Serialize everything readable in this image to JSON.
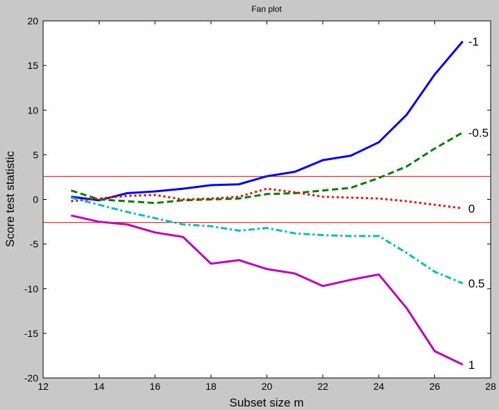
{
  "chart_data": {
    "type": "line",
    "title": "Fan plot",
    "xlabel": "Subset size m",
    "ylabel": "Score test statistic",
    "xlim": [
      12,
      28
    ],
    "ylim": [
      -20,
      20
    ],
    "xticks": [
      12,
      14,
      16,
      18,
      20,
      22,
      24,
      26,
      28
    ],
    "yticks": [
      -20,
      -15,
      -10,
      -5,
      0,
      5,
      10,
      15,
      20
    ],
    "grid": false,
    "x": [
      13,
      14,
      15,
      16,
      17,
      18,
      19,
      20,
      21,
      22,
      23,
      24,
      25,
      26,
      27
    ],
    "series": [
      {
        "name": "-1",
        "color": "#0000ff",
        "dash": "solid",
        "values": [
          0.3,
          -0.1,
          0.7,
          0.9,
          1.2,
          1.6,
          1.7,
          2.6,
          3.1,
          4.4,
          4.9,
          6.4,
          9.5,
          14.0,
          17.7
        ]
      },
      {
        "name": "-0.5",
        "color": "#008000",
        "dash": "dashed",
        "values": [
          1.0,
          0.0,
          -0.2,
          -0.4,
          -0.1,
          0.0,
          0.1,
          0.6,
          0.7,
          1.0,
          1.3,
          2.4,
          3.7,
          5.7,
          7.5
        ]
      },
      {
        "name": "0",
        "color": "#ff0000",
        "dash": "dotted",
        "values": [
          -0.2,
          0.1,
          0.4,
          0.5,
          0.0,
          0.1,
          0.3,
          1.2,
          0.8,
          0.3,
          0.2,
          0.1,
          -0.2,
          -0.6,
          -1.0
        ]
      },
      {
        "name": "0.5",
        "color": "#00bfbf",
        "dash": "dashdot",
        "values": [
          0.2,
          -0.6,
          -1.4,
          -2.1,
          -2.8,
          -3.0,
          -3.5,
          -3.2,
          -3.8,
          -4.0,
          -4.1,
          -4.1,
          -6.0,
          -8.1,
          -9.4
        ]
      },
      {
        "name": "1",
        "color": "#bf00bf",
        "dash": "solid",
        "values": [
          -1.8,
          -2.5,
          -2.8,
          -3.7,
          -4.2,
          -7.2,
          -6.8,
          -7.8,
          -8.3,
          -9.7,
          -9.0,
          -8.4,
          -12.2,
          -17.0,
          -18.5
        ]
      }
    ],
    "reference_lines": [
      2.58,
      -2.58
    ],
    "reference_color": "#ff0000"
  }
}
